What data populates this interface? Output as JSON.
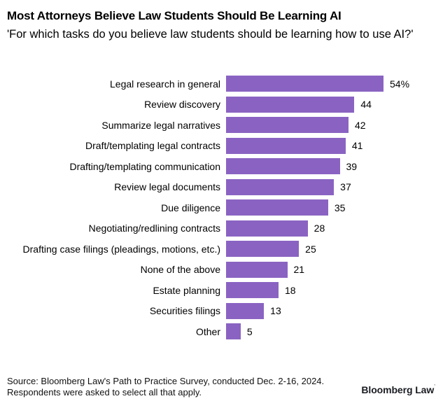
{
  "header": {
    "title": "Most Attorneys Believe Law Students Should Be Learning AI",
    "subtitle": "'For which tasks do you believe law students should be learning how to use AI?'"
  },
  "chart_data": {
    "type": "bar",
    "orientation": "horizontal",
    "title": "Most Attorneys Believe Law Students Should Be Learning AI",
    "subtitle": "'For which tasks do you believe law students should be learning how to use AI?'",
    "categories": [
      "Legal research in general",
      "Review discovery",
      "Summarize legal narratives",
      "Draft/templating legal contracts",
      "Drafting/templating communication",
      "Review legal documents",
      "Due diligence",
      "Negotiating/redlining contracts",
      "Drafting case filings (pleadings, motions, etc.)",
      "None of the above",
      "Estate planning",
      "Securities filings",
      "Other"
    ],
    "values": [
      54,
      44,
      42,
      41,
      39,
      37,
      35,
      28,
      25,
      21,
      18,
      13,
      5
    ],
    "value_labels": [
      "54%",
      "44",
      "42",
      "41",
      "39",
      "37",
      "35",
      "28",
      "25",
      "21",
      "18",
      "13",
      "5"
    ],
    "unit": "%",
    "xlim": [
      0,
      54
    ],
    "grid": false,
    "legend": false,
    "bar_color": "#8a63c2",
    "xlabel": "",
    "ylabel": ""
  },
  "footer": {
    "source_line1": "Source: Bloomberg Law's Path to Practice Survey, conducted Dec. 2-16, 2024.",
    "source_line2": "Respondents were asked to select all that apply.",
    "logo": "Bloomberg Law",
    "logo_mark": "’"
  },
  "colors": {
    "background": "#ffffff",
    "bar": "#8a63c2",
    "text": "#000000",
    "source_text": "#111111",
    "logo_text": "#1a1c22"
  }
}
